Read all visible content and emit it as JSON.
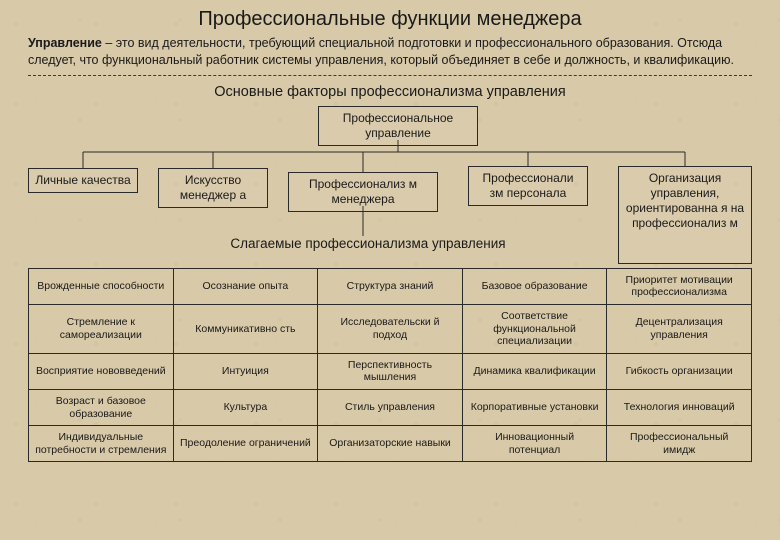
{
  "title": "Профессиональные функции менеджера",
  "intro_bold": "Управление",
  "intro_rest": " – это вид деятельности, требующий специальной подготовки и профессионального образования. Отсюда следует, что функциональный работник системы управления, который объединяет в себе и должность, и квалификацию.",
  "subheading": "Основные факторы профессионализма управления",
  "root_box": "Профессиональное управление",
  "children": [
    "Личные качества",
    "Искусство менеджер а",
    "Профессионализ м менеджера",
    "Профессионали зм персонала",
    "Организация управления, ориентированна я на профессионализ м"
  ],
  "components_label": "Слагаемые профессионализма управления",
  "table": {
    "rows": [
      [
        "Врожденные способности",
        "Осознание опыта",
        "Структура знаний",
        "Базовое образование",
        "Приоритет мотивации профессионализма"
      ],
      [
        "Стремление к самореализации",
        "Коммуникативно сть",
        "Исследовательски й подход",
        "Соответствие функциональной специализации",
        "Децентрализация управления"
      ],
      [
        "Восприятие нововведений",
        "Интуиция",
        "Перспективность мышления",
        "Динамика квалификации",
        "Гибкость организации"
      ],
      [
        "Возраст и базовое образование",
        "Культура",
        "Стиль управления",
        "Корпоративные установки",
        "Технология инноваций"
      ],
      [
        "Индивидуальные потребности и стремления",
        "Преодоление ограничений",
        "Организаторские навыки",
        "Инновационный потенциал",
        "Профессиональный имидж"
      ]
    ]
  },
  "colors": {
    "background": "#d8c9a8",
    "text": "#1a1a1a",
    "border": "#2a2a2a"
  },
  "fonts": {
    "title_size_pt": 20,
    "body_size_pt": 12,
    "table_size_pt": 10
  },
  "structure": "flowchart-with-table"
}
